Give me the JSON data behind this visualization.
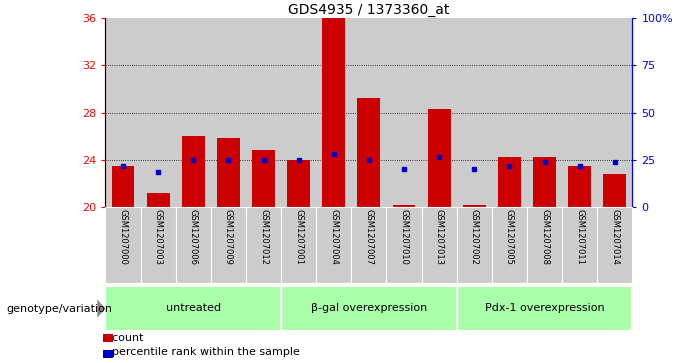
{
  "title": "GDS4935 / 1373360_at",
  "samples": [
    "GSM1207000",
    "GSM1207003",
    "GSM1207006",
    "GSM1207009",
    "GSM1207012",
    "GSM1207001",
    "GSM1207004",
    "GSM1207007",
    "GSM1207010",
    "GSM1207013",
    "GSM1207002",
    "GSM1207005",
    "GSM1207008",
    "GSM1207011",
    "GSM1207014"
  ],
  "count_values": [
    23.5,
    21.2,
    26.0,
    25.8,
    24.8,
    24.0,
    36.0,
    29.2,
    20.2,
    28.3,
    20.2,
    24.2,
    24.2,
    23.5,
    22.8
  ],
  "percentile_values": [
    23.5,
    23.0,
    24.0,
    24.0,
    24.0,
    24.0,
    24.5,
    24.0,
    23.2,
    24.2,
    23.2,
    23.5,
    23.8,
    23.5,
    23.8
  ],
  "groups": [
    {
      "label": "untreated",
      "start": 0,
      "end": 5
    },
    {
      "label": "β-gal overexpression",
      "start": 5,
      "end": 10
    },
    {
      "label": "Pdx-1 overexpression",
      "start": 10,
      "end": 15
    }
  ],
  "ylim_left": [
    20,
    36
  ],
  "ylim_right": [
    0,
    100
  ],
  "yticks_left": [
    20,
    24,
    28,
    32,
    36
  ],
  "ytick_labels_left": [
    "20",
    "24",
    "28",
    "32",
    "36"
  ],
  "yticks_right_pct": [
    0,
    25,
    50,
    75,
    100
  ],
  "bar_color": "#cc0000",
  "percentile_color": "#0000cc",
  "group_bg_color": "#aaffaa",
  "sample_bg_color": "#cccccc",
  "xlabel_left": "genotype/variation",
  "legend_count": "count",
  "legend_pct": "percentile rank within the sample",
  "fig_bg": "#ffffff"
}
